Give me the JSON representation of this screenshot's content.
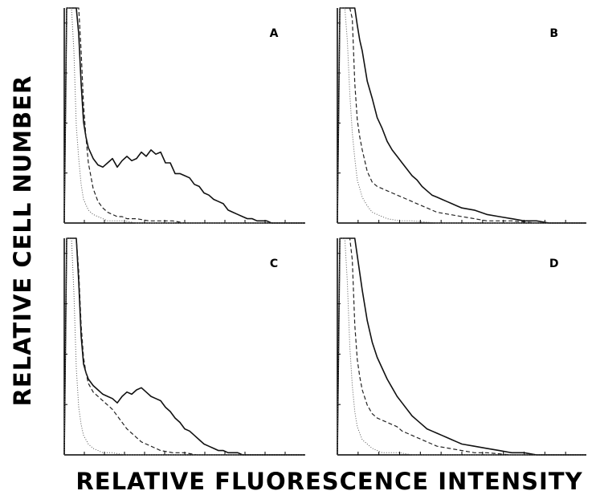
{
  "figure": {
    "ylabel": "RELATIVE CELL NUMBER",
    "xlabel": "RELATIVE FLUORESCENCE INTENSITY"
  },
  "chart_data": [
    {
      "type": "line",
      "panel_label": "A",
      "grid": false,
      "xlim": [
        0,
        100
      ],
      "ylim": [
        0,
        100
      ],
      "series": [
        {
          "style": "solid",
          "x": [
            0,
            1,
            2,
            3,
            4,
            5,
            6,
            7,
            8,
            9,
            10,
            12,
            14,
            16,
            18,
            20,
            22,
            24,
            26,
            28,
            30,
            32,
            34,
            36,
            38,
            40,
            42,
            44,
            46,
            48,
            50,
            52,
            54,
            56,
            58,
            60,
            62,
            64,
            66,
            68,
            70,
            72,
            74,
            76,
            78,
            80,
            82,
            84,
            86,
            88,
            90,
            92,
            94,
            96,
            98,
            100
          ],
          "y": [
            0,
            100,
            100,
            100,
            100,
            100,
            88,
            65,
            47,
            40,
            35,
            30,
            27,
            26,
            28,
            30,
            26,
            29,
            31,
            29,
            30,
            33,
            31,
            34,
            32,
            33,
            28,
            28,
            23,
            23,
            22,
            21,
            18,
            17,
            14,
            13,
            11,
            10,
            9,
            6,
            5,
            4,
            3,
            2,
            2,
            1,
            1,
            1,
            0,
            0,
            0,
            0,
            0,
            0,
            0,
            0
          ]
        },
        {
          "style": "dashed",
          "x": [
            0,
            1,
            2,
            3,
            4,
            5,
            6,
            7,
            8,
            9,
            10,
            12,
            14,
            16,
            18,
            20,
            22,
            24,
            26,
            28,
            30,
            35,
            40,
            45,
            50,
            55,
            60,
            70,
            80,
            90,
            100
          ],
          "y": [
            0,
            100,
            100,
            100,
            100,
            100,
            100,
            80,
            55,
            40,
            28,
            16,
            10,
            7,
            5,
            4,
            3,
            3,
            2,
            2,
            2,
            1,
            1,
            1,
            0,
            0,
            0,
            0,
            0,
            0,
            0
          ]
        },
        {
          "style": "dotted",
          "x": [
            0,
            1,
            2,
            3,
            4,
            5,
            6,
            7,
            8,
            10,
            12,
            14,
            16,
            18,
            20,
            25,
            30,
            40,
            50,
            60,
            80,
            100
          ],
          "y": [
            0,
            100,
            100,
            100,
            80,
            45,
            30,
            18,
            11,
            6,
            4,
            3,
            2,
            1,
            1,
            1,
            0,
            0,
            0,
            0,
            0,
            0
          ]
        }
      ]
    },
    {
      "type": "line",
      "panel_label": "B",
      "grid": false,
      "xlim": [
        0,
        100
      ],
      "ylim": [
        0,
        100
      ],
      "series": [
        {
          "style": "solid",
          "x": [
            0,
            1,
            2,
            3,
            4,
            5,
            6,
            7,
            8,
            9,
            10,
            12,
            14,
            16,
            18,
            20,
            22,
            24,
            26,
            28,
            30,
            32,
            34,
            36,
            38,
            40,
            42,
            44,
            46,
            48,
            50,
            55,
            60,
            65,
            70,
            75,
            80,
            85,
            90,
            95,
            100
          ],
          "y": [
            0,
            100,
            100,
            100,
            100,
            100,
            100,
            100,
            92,
            85,
            80,
            66,
            58,
            49,
            44,
            38,
            34,
            31,
            28,
            25,
            22,
            20,
            17,
            15,
            13,
            12,
            11,
            10,
            9,
            8,
            7,
            6,
            4,
            3,
            2,
            1,
            1,
            0,
            0,
            0,
            0
          ]
        },
        {
          "style": "dashed",
          "x": [
            0,
            1,
            2,
            3,
            4,
            5,
            6,
            7,
            8,
            9,
            10,
            12,
            14,
            16,
            18,
            20,
            22,
            24,
            26,
            28,
            30,
            32,
            34,
            36,
            38,
            40,
            45,
            50,
            55,
            60,
            70,
            80,
            90,
            100
          ],
          "y": [
            0,
            100,
            100,
            100,
            100,
            100,
            95,
            65,
            48,
            40,
            34,
            24,
            19,
            17,
            16,
            15,
            14,
            13,
            12,
            11,
            10,
            9,
            8,
            7,
            6,
            5,
            4,
            3,
            2,
            1,
            1,
            0,
            0,
            0
          ]
        },
        {
          "style": "dotted",
          "x": [
            0,
            1,
            2,
            3,
            4,
            5,
            6,
            7,
            8,
            10,
            12,
            14,
            16,
            18,
            20,
            25,
            30,
            40,
            50,
            60,
            80,
            100
          ],
          "y": [
            0,
            100,
            100,
            100,
            85,
            60,
            42,
            30,
            20,
            12,
            8,
            5,
            4,
            3,
            2,
            1,
            1,
            0,
            0,
            0,
            0,
            0
          ]
        }
      ]
    },
    {
      "type": "line",
      "panel_label": "C",
      "grid": false,
      "xlim": [
        0,
        100
      ],
      "ylim": [
        0,
        100
      ],
      "series": [
        {
          "style": "solid",
          "x": [
            0,
            1,
            2,
            3,
            4,
            5,
            6,
            7,
            8,
            9,
            10,
            12,
            14,
            16,
            18,
            20,
            22,
            24,
            26,
            28,
            30,
            32,
            34,
            36,
            38,
            40,
            42,
            44,
            46,
            48,
            50,
            52,
            54,
            56,
            58,
            60,
            62,
            64,
            66,
            68,
            70,
            72,
            74,
            76,
            78,
            80,
            85,
            90,
            95,
            100
          ],
          "y": [
            0,
            100,
            100,
            100,
            100,
            100,
            80,
            55,
            42,
            38,
            35,
            32,
            30,
            28,
            27,
            26,
            24,
            27,
            29,
            28,
            30,
            31,
            29,
            27,
            26,
            25,
            22,
            20,
            17,
            15,
            12,
            11,
            9,
            7,
            5,
            4,
            3,
            2,
            2,
            1,
            1,
            1,
            0,
            0,
            0,
            0,
            0,
            0,
            0,
            0
          ]
        },
        {
          "style": "dashed",
          "x": [
            0,
            1,
            2,
            3,
            4,
            5,
            6,
            7,
            8,
            9,
            10,
            12,
            14,
            16,
            18,
            20,
            22,
            24,
            26,
            28,
            30,
            32,
            34,
            36,
            38,
            40,
            45,
            50,
            55,
            60,
            70,
            80,
            90,
            100
          ],
          "y": [
            0,
            100,
            100,
            100,
            100,
            100,
            85,
            60,
            45,
            38,
            33,
            29,
            27,
            25,
            23,
            21,
            18,
            15,
            12,
            10,
            8,
            6,
            5,
            4,
            3,
            2,
            1,
            1,
            0,
            0,
            0,
            0,
            0,
            0
          ]
        },
        {
          "style": "dotted",
          "x": [
            0,
            1,
            2,
            3,
            4,
            5,
            6,
            7,
            8,
            10,
            12,
            14,
            16,
            18,
            20,
            25,
            30,
            40,
            50,
            60,
            80,
            100
          ],
          "y": [
            0,
            100,
            100,
            100,
            75,
            40,
            22,
            14,
            9,
            5,
            3,
            2,
            1,
            1,
            1,
            0,
            0,
            0,
            0,
            0,
            0,
            0
          ]
        }
      ]
    },
    {
      "type": "line",
      "panel_label": "D",
      "grid": false,
      "xlim": [
        0,
        100
      ],
      "ylim": [
        0,
        100
      ],
      "series": [
        {
          "style": "solid",
          "x": [
            0,
            1,
            2,
            3,
            4,
            5,
            6,
            7,
            8,
            9,
            10,
            12,
            14,
            16,
            18,
            20,
            22,
            24,
            26,
            28,
            30,
            32,
            34,
            36,
            38,
            40,
            42,
            44,
            46,
            48,
            50,
            55,
            60,
            65,
            70,
            75,
            80,
            85,
            90,
            95,
            100
          ],
          "y": [
            0,
            100,
            100,
            100,
            100,
            100,
            100,
            100,
            92,
            84,
            76,
            62,
            52,
            45,
            40,
            35,
            31,
            27,
            24,
            21,
            18,
            16,
            14,
            12,
            11,
            10,
            9,
            8,
            7,
            6,
            5,
            4,
            3,
            2,
            1,
            1,
            0,
            0,
            0,
            0,
            0
          ]
        },
        {
          "style": "dashed",
          "x": [
            0,
            1,
            2,
            3,
            4,
            5,
            6,
            7,
            8,
            9,
            10,
            12,
            14,
            16,
            18,
            20,
            22,
            24,
            26,
            28,
            30,
            32,
            34,
            36,
            38,
            40,
            45,
            50,
            55,
            60,
            70,
            80,
            90,
            100
          ],
          "y": [
            0,
            100,
            100,
            100,
            100,
            100,
            90,
            60,
            44,
            36,
            30,
            23,
            19,
            17,
            16,
            15,
            14,
            13,
            11,
            10,
            9,
            8,
            7,
            6,
            5,
            4,
            3,
            2,
            1,
            1,
            0,
            0,
            0,
            0
          ]
        },
        {
          "style": "dotted",
          "x": [
            0,
            1,
            2,
            3,
            4,
            5,
            6,
            7,
            8,
            10,
            12,
            14,
            16,
            18,
            20,
            25,
            30,
            40,
            50,
            60,
            80,
            100
          ],
          "y": [
            0,
            100,
            100,
            100,
            80,
            50,
            32,
            20,
            13,
            7,
            5,
            3,
            2,
            1,
            1,
            1,
            0,
            0,
            0,
            0,
            0,
            0
          ]
        }
      ]
    }
  ]
}
